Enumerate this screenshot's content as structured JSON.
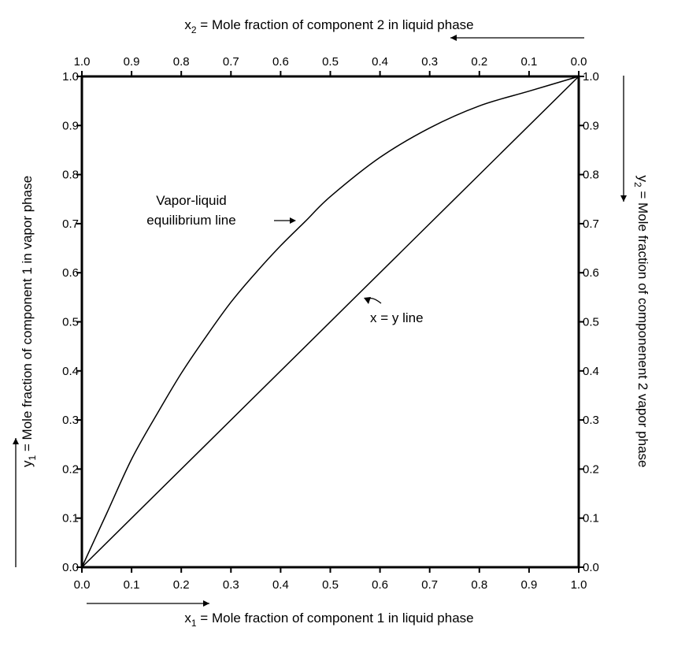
{
  "chart_data": {
    "type": "line",
    "xlim": [
      0.0,
      1.0
    ],
    "ylim": [
      0.0,
      1.0
    ],
    "grid": false,
    "bottom_axis": {
      "title_var": "x",
      "title_sub": "1",
      "title_text": " = Mole fraction of component 1 in liquid phase",
      "ticks": [
        "0.0",
        "0.1",
        "0.2",
        "0.3",
        "0.4",
        "0.5",
        "0.6",
        "0.7",
        "0.8",
        "0.9",
        "1.0"
      ]
    },
    "top_axis": {
      "title_var": "x",
      "title_sub": "2",
      "title_text": " = Mole fraction of component 2 in liquid phase",
      "ticks": [
        "1.0",
        "0.9",
        "0.8",
        "0.7",
        "0.6",
        "0.5",
        "0.4",
        "0.3",
        "0.2",
        "0.1",
        "0.0"
      ]
    },
    "left_axis": {
      "title_var": "y",
      "title_sub": "1",
      "title_text": " = Mole fraction of component 1 in vapor phase",
      "ticks": [
        "0.0",
        "0.1",
        "0.2",
        "0.3",
        "0.4",
        "0.5",
        "0.6",
        "0.7",
        "0.8",
        "0.9",
        "1.0"
      ]
    },
    "right_axis": {
      "title_var": "y",
      "title_sub": "2",
      "title_text": " = Mole fraction of componenent 2 vapor phase",
      "ticks": [
        "1.0",
        "0.9",
        "0.8",
        "0.7",
        "0.6",
        "0.5",
        "0.4",
        "0.3",
        "0.2",
        "0.1",
        "0.0"
      ]
    },
    "series": [
      {
        "x": [
          0.0,
          0.05,
          0.1,
          0.15,
          0.2,
          0.25,
          0.3,
          0.35,
          0.4,
          0.45,
          0.5,
          0.6,
          0.7,
          0.8,
          0.9,
          1.0
        ],
        "y": [
          0.0,
          0.11,
          0.22,
          0.31,
          0.395,
          0.47,
          0.54,
          0.6,
          0.655,
          0.705,
          0.755,
          0.835,
          0.895,
          0.94,
          0.97,
          1.0
        ]
      },
      {
        "x": [
          0.0,
          1.0
        ],
        "y": [
          0.0,
          1.0
        ]
      }
    ],
    "annotations": {
      "vle_line1": "Vapor-liquid",
      "vle_line2": "equilibrium line",
      "xy_label": "x = y  line"
    }
  }
}
